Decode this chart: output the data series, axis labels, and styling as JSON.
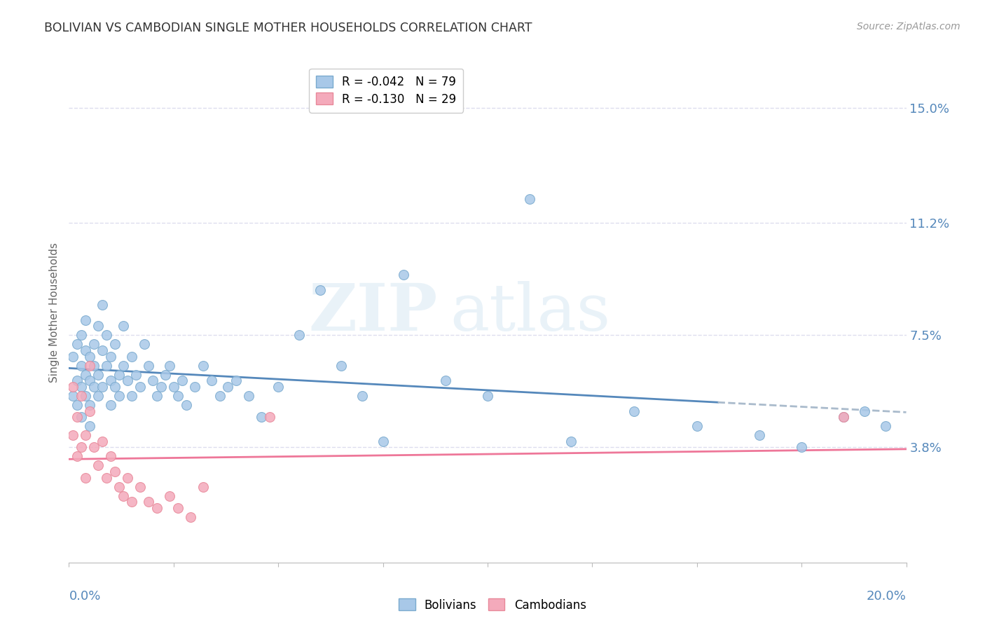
{
  "title": "BOLIVIAN VS CAMBODIAN SINGLE MOTHER HOUSEHOLDS CORRELATION CHART",
  "source": "Source: ZipAtlas.com",
  "ylabel": "Single Mother Households",
  "ytick_labels": [
    "15.0%",
    "11.2%",
    "7.5%",
    "3.8%"
  ],
  "ytick_values": [
    0.15,
    0.112,
    0.075,
    0.038
  ],
  "xmin": 0.0,
  "xmax": 0.2,
  "ymin": 0.0,
  "ymax": 0.165,
  "watermark_zip": "ZIP",
  "watermark_atlas": "atlas",
  "legend_blue_label": "R = -0.042   N = 79",
  "legend_pink_label": "R = -0.130   N = 29",
  "blue_color": "#A8C8E8",
  "pink_color": "#F4AABB",
  "blue_edge_color": "#7AAACE",
  "pink_edge_color": "#E88899",
  "blue_line_color": "#5588BB",
  "pink_line_color": "#EE7799",
  "axis_color": "#5588BB",
  "grid_color": "#DDDDEE",
  "bolivians_x": [
    0.001,
    0.001,
    0.002,
    0.002,
    0.002,
    0.003,
    0.003,
    0.003,
    0.003,
    0.004,
    0.004,
    0.004,
    0.004,
    0.005,
    0.005,
    0.005,
    0.005,
    0.006,
    0.006,
    0.006,
    0.007,
    0.007,
    0.007,
    0.008,
    0.008,
    0.008,
    0.009,
    0.009,
    0.01,
    0.01,
    0.01,
    0.011,
    0.011,
    0.012,
    0.012,
    0.013,
    0.013,
    0.014,
    0.015,
    0.015,
    0.016,
    0.017,
    0.018,
    0.019,
    0.02,
    0.021,
    0.022,
    0.023,
    0.024,
    0.025,
    0.026,
    0.027,
    0.028,
    0.03,
    0.032,
    0.034,
    0.036,
    0.038,
    0.04,
    0.043,
    0.046,
    0.05,
    0.055,
    0.06,
    0.065,
    0.07,
    0.075,
    0.08,
    0.09,
    0.1,
    0.11,
    0.12,
    0.135,
    0.15,
    0.165,
    0.175,
    0.185,
    0.19,
    0.195
  ],
  "bolivians_y": [
    0.055,
    0.068,
    0.06,
    0.052,
    0.072,
    0.058,
    0.065,
    0.048,
    0.075,
    0.062,
    0.07,
    0.055,
    0.08,
    0.06,
    0.052,
    0.068,
    0.045,
    0.065,
    0.058,
    0.072,
    0.055,
    0.078,
    0.062,
    0.07,
    0.058,
    0.085,
    0.065,
    0.075,
    0.06,
    0.052,
    0.068,
    0.058,
    0.072,
    0.062,
    0.055,
    0.065,
    0.078,
    0.06,
    0.055,
    0.068,
    0.062,
    0.058,
    0.072,
    0.065,
    0.06,
    0.055,
    0.058,
    0.062,
    0.065,
    0.058,
    0.055,
    0.06,
    0.052,
    0.058,
    0.065,
    0.06,
    0.055,
    0.058,
    0.06,
    0.055,
    0.048,
    0.058,
    0.075,
    0.09,
    0.065,
    0.055,
    0.04,
    0.095,
    0.06,
    0.055,
    0.12,
    0.04,
    0.05,
    0.045,
    0.042,
    0.038,
    0.048,
    0.05,
    0.045
  ],
  "cambodians_x": [
    0.001,
    0.001,
    0.002,
    0.002,
    0.003,
    0.003,
    0.004,
    0.004,
    0.005,
    0.005,
    0.006,
    0.007,
    0.008,
    0.009,
    0.01,
    0.011,
    0.012,
    0.013,
    0.014,
    0.015,
    0.017,
    0.019,
    0.021,
    0.024,
    0.026,
    0.029,
    0.032,
    0.048,
    0.185
  ],
  "cambodians_y": [
    0.058,
    0.042,
    0.048,
    0.035,
    0.055,
    0.038,
    0.042,
    0.028,
    0.05,
    0.065,
    0.038,
    0.032,
    0.04,
    0.028,
    0.035,
    0.03,
    0.025,
    0.022,
    0.028,
    0.02,
    0.025,
    0.02,
    0.018,
    0.022,
    0.018,
    0.015,
    0.025,
    0.048,
    0.048
  ]
}
